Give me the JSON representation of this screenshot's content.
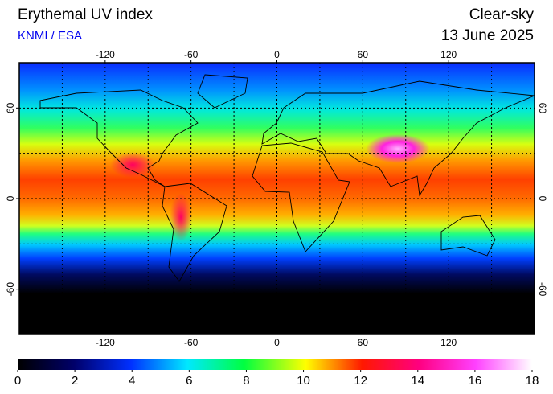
{
  "title": "Erythemal UV index",
  "source": "KNMI / ESA",
  "condition": "Clear-sky",
  "date": "13 June 2025",
  "map": {
    "lon_range": [
      -180,
      180
    ],
    "lat_range": [
      -90,
      90
    ],
    "lon_ticks": [
      -120,
      -60,
      0,
      60,
      120
    ],
    "lat_ticks": [
      60,
      0,
      -60
    ],
    "grid_lon": [
      -150,
      -120,
      -90,
      -60,
      -30,
      0,
      30,
      60,
      90,
      120,
      150
    ],
    "grid_lat": [
      -60,
      -30,
      0,
      30,
      60
    ]
  },
  "colorbar": {
    "range": [
      0,
      18
    ],
    "ticks": [
      0,
      2,
      4,
      6,
      8,
      10,
      12,
      14,
      16,
      18
    ]
  }
}
